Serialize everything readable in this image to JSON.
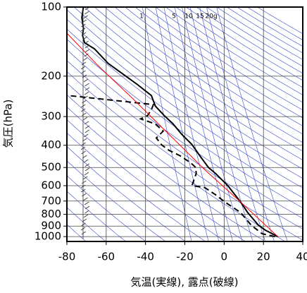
{
  "chart_data": {
    "type": "line",
    "x_label": "気温(実線), 露点(破線)",
    "y_label": "気圧(hPa)",
    "xlim": [
      -80,
      40
    ],
    "xticks": [
      -80,
      -60,
      -40,
      -20,
      0,
      20,
      40
    ],
    "ylim": [
      1050,
      100
    ],
    "yticks": [
      100,
      200,
      300,
      400,
      500,
      600,
      700,
      800,
      900,
      1000
    ],
    "y_log": true,
    "grid": true,
    "mixing_ratio_labels": [
      "1",
      "5",
      "10",
      "15",
      "20g"
    ],
    "series": [
      {
        "color": "#000000",
        "dash": false,
        "x": [
          27.3,
          21,
          17.5,
          12,
          8.4,
          1.8,
          -4.4,
          -8,
          -12.4,
          -16.4,
          -21.5,
          -26,
          -30.5,
          -35,
          -37,
          -44,
          -50,
          -59,
          -66,
          -71,
          -72,
          -71.6,
          -72.4,
          -71.6
        ],
        "y": [
          1000,
          938,
          893,
          786,
          707,
          599,
          531,
          500,
          444,
          397,
          359,
          323,
          297,
          270,
          243,
          218,
          200,
          176,
          152,
          143,
          133,
          124,
          111,
          100
        ]
      },
      {
        "color": "#000000",
        "dash": true,
        "x": [
          25.8,
          19.3,
          13.8,
          8.4,
          0.4,
          -4.4,
          -9.8,
          -16.4,
          -14.2,
          -14.5,
          -17,
          -22.5,
          -28,
          -31.6,
          -34.5,
          -31,
          -35,
          -42.5,
          -39,
          -37,
          -36,
          -79
        ],
        "y": [
          1000,
          971,
          893,
          786,
          707,
          657,
          612,
          599,
          531,
          500,
          477,
          444,
          421,
          400,
          372,
          347,
          323,
          307,
          297,
          280,
          266,
          243
        ]
      },
      {
        "color": "#ff0000",
        "dash": false,
        "x": [
          27.3,
          8.4,
          -9.8,
          -28,
          -46.2,
          -64.4,
          -80
        ],
        "y": [
          1000,
          707,
          512,
          359,
          252,
          179,
          130
        ]
      }
    ]
  }
}
